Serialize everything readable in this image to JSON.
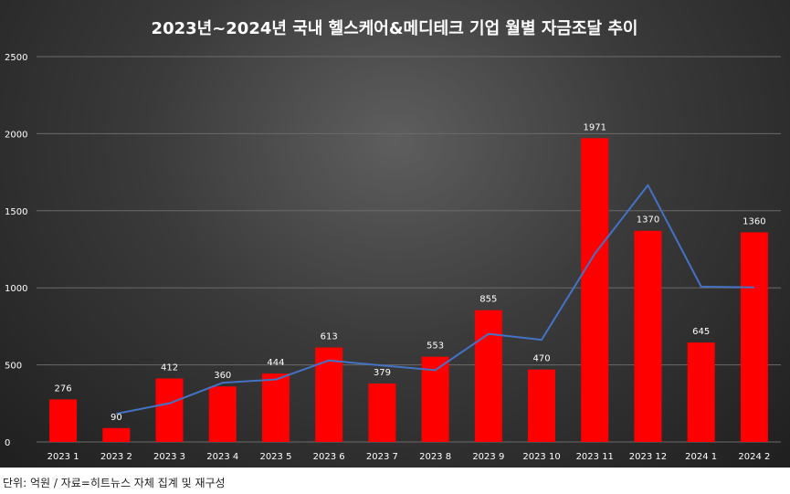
{
  "colors": {
    "bar": "#ff0000",
    "line": "#4472c4",
    "gridline": "#6a6a6a",
    "text": "#ffffff"
  },
  "chart_data": {
    "type": "bar",
    "title": "2023년~2024년 국내 헬스케어&메디테크 기업 월별 자금조달 추이",
    "categories": [
      "2023 1",
      "2023 2",
      "2023 3",
      "2023 4",
      "2023 5",
      "2023 6",
      "2023 7",
      "2023 8",
      "2023 9",
      "2023 10",
      "2023 11",
      "2023 12",
      "2024 1",
      "2024 2"
    ],
    "series": [
      {
        "type": "bar",
        "values": [
          276,
          90,
          412,
          360,
          444,
          613,
          379,
          553,
          855,
          470,
          1971,
          1370,
          645,
          1360
        ],
        "data_labels": true
      },
      {
        "type": "line",
        "values": [
          null,
          183,
          251,
          384,
          405,
          529,
          496,
          466,
          701,
          663,
          1221,
          1666,
          1008,
          1003
        ],
        "data_labels": false
      }
    ],
    "yticks": [
      0,
      500,
      1000,
      1500,
      2000,
      2500
    ],
    "ylim": [
      0,
      2500
    ],
    "grid": true,
    "legend": "none"
  },
  "footer": {
    "note": "단위: 억원 / 자료=히트뉴스 자체 집계 및 재구성"
  }
}
